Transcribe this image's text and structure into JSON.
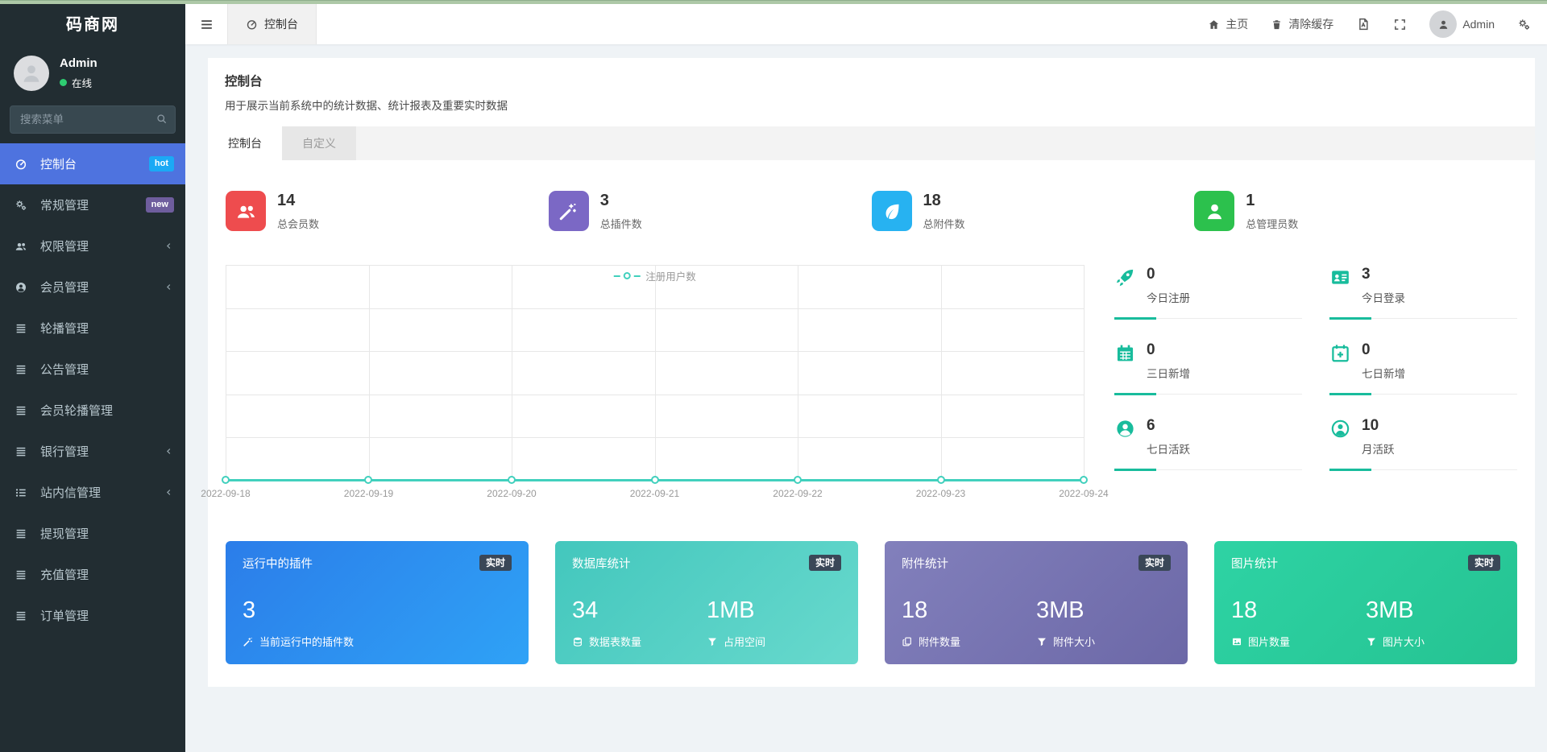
{
  "theme": {
    "accent": "#18bc9c",
    "chart": "#41d0bd",
    "sidebar": "#222d32",
    "sidebaractive": "#4e73df",
    "content": "#eff3f6",
    "topstrip": "#adc8a7",
    "grid": "#e7e7e7"
  },
  "sidebar": {
    "logo": "码商网",
    "user": {
      "name": "Admin",
      "status": "在线"
    },
    "search_placeholder": "搜索菜单",
    "items": [
      {
        "label": "控制台",
        "icon": "tachometer",
        "badge": "hot",
        "badge_color": "#1ba9f5",
        "active": true
      },
      {
        "label": "常规管理",
        "icon": "gears",
        "badge": "new",
        "badge_color": "#6e5d9d"
      },
      {
        "label": "权限管理",
        "icon": "users",
        "arrow": true
      },
      {
        "label": "会员管理",
        "icon": "user-circle",
        "arrow": true
      },
      {
        "label": "轮播管理",
        "icon": "bars"
      },
      {
        "label": "公告管理",
        "icon": "bars"
      },
      {
        "label": "会员轮播管理",
        "icon": "bars"
      },
      {
        "label": "银行管理",
        "icon": "bars",
        "arrow": true
      },
      {
        "label": "站内信管理",
        "icon": "list-ul",
        "arrow": true
      },
      {
        "label": "提现管理",
        "icon": "bars"
      },
      {
        "label": "充值管理",
        "icon": "bars"
      },
      {
        "label": "订单管理",
        "icon": "bars"
      }
    ]
  },
  "topbar": {
    "tab": {
      "label": "控制台",
      "icon": "tachometer"
    },
    "home_label": "主页",
    "clear_cache_label": "清除缓存",
    "username": "Admin"
  },
  "page": {
    "title": "控制台",
    "description": "用于展示当前系统中的统计数据、统计报表及重要实时数据",
    "tabs": [
      {
        "label": "控制台"
      },
      {
        "label": "自定义"
      }
    ]
  },
  "stats": [
    {
      "value": "14",
      "label": "总会员数",
      "icon": "users",
      "color": "#ee4c4e"
    },
    {
      "value": "3",
      "label": "总插件数",
      "icon": "magic",
      "color": "#7b68c5"
    },
    {
      "value": "18",
      "label": "总附件数",
      "icon": "leaf",
      "color": "#27b2f1"
    },
    {
      "value": "1",
      "label": "总管理员数",
      "icon": "user",
      "color": "#2cc14d"
    }
  ],
  "chart_data": {
    "type": "line",
    "title": "",
    "x": [
      "2022-09-18",
      "2022-09-19",
      "2022-09-20",
      "2022-09-21",
      "2022-09-22",
      "2022-09-23",
      "2022-09-24"
    ],
    "series": [
      {
        "name": "注册用户数",
        "values": [
          0,
          0,
          0,
          0,
          0,
          0,
          0
        ],
        "color": "#41d0bd"
      }
    ],
    "xlabel": "",
    "ylabel": "",
    "ylim": [
      0,
      1
    ],
    "grid": true,
    "legend_position": "top-center",
    "marker": "circle-open"
  },
  "quick_stats": {
    "accent": "#18bc9c",
    "items": [
      {
        "value": "0",
        "label": "今日注册",
        "icon": "rocket"
      },
      {
        "value": "3",
        "label": "今日登录",
        "icon": "id-card"
      },
      {
        "value": "0",
        "label": "三日新增",
        "icon": "calendar"
      },
      {
        "value": "0",
        "label": "七日新增",
        "icon": "calendar-plus"
      },
      {
        "value": "6",
        "label": "七日活跃",
        "icon": "user-circle"
      },
      {
        "value": "10",
        "label": "月活跃",
        "icon": "user-circle-o"
      }
    ]
  },
  "cards": [
    {
      "title": "运行中的插件",
      "badge": "实时",
      "grad": "#2b7de9|#2fa2f6",
      "cols": [
        {
          "value": "3",
          "icon": "magic",
          "label": "当前运行中的插件数"
        }
      ]
    },
    {
      "title": "数据库统计",
      "badge": "实时",
      "grad": "#43c7bd|#68d9cd",
      "cols": [
        {
          "value": "34",
          "icon": "database",
          "label": "数据表数量"
        },
        {
          "value": "1MB",
          "icon": "funnel",
          "label": "占用空间"
        }
      ]
    },
    {
      "title": "附件统计",
      "badge": "实时",
      "grad": "#8280bc|#6c68a7",
      "cols": [
        {
          "value": "18",
          "icon": "copy",
          "label": "附件数量"
        },
        {
          "value": "3MB",
          "icon": "funnel",
          "label": "附件大小"
        }
      ]
    },
    {
      "title": "图片统计",
      "badge": "实时",
      "grad": "#2ed3a4|#25c392",
      "cols": [
        {
          "value": "18",
          "icon": "image",
          "label": "图片数量"
        },
        {
          "value": "3MB",
          "icon": "funnel",
          "label": "图片大小"
        }
      ]
    }
  ]
}
